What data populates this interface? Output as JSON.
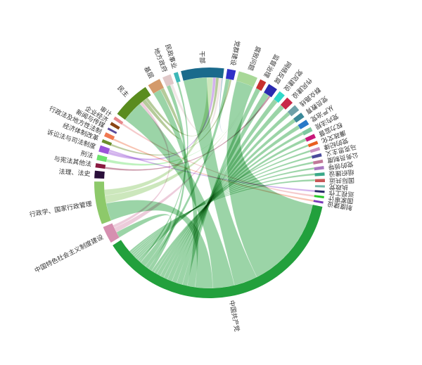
{
  "chart_data": {
    "type": "chord",
    "title": "",
    "groups": [
      {
        "name": "中国共产党",
        "value": 250,
        "color": "#22a03c"
      },
      {
        "name": "中国特色社会主义制度建设",
        "value": 16,
        "color": "#d68fb0"
      },
      {
        "name": "行政学、国家行政管理",
        "value": 40,
        "color": "#8dc96a"
      },
      {
        "name": "法理、法史",
        "value": 7,
        "color": "#2a0f3a"
      },
      {
        "name": "与宪法其他法",
        "value": 4,
        "color": "#8a1a40"
      },
      {
        "name": "刑法",
        "value": 5,
        "color": "#6ee36e"
      },
      {
        "name": "诉讼法与司法制度",
        "value": 6,
        "color": "#9b55d8"
      },
      {
        "name": "经济体制改革",
        "value": 3,
        "color": "#6b8e2a"
      },
      {
        "name": "行政法及地方性法制",
        "value": 4,
        "color": "#f07850"
      },
      {
        "name": "新闻与传媒",
        "value": 2,
        "color": "#5a4a9a"
      },
      {
        "name": "企业经济",
        "value": 3,
        "color": "#8b4513"
      },
      {
        "name": "审计",
        "value": 3,
        "color": "#e8888a"
      },
      {
        "name": "民主",
        "value": 36,
        "color": "#5a8c1e"
      },
      {
        "name": "基层",
        "value": 12,
        "color": "#d49a6a"
      },
      {
        "name": "地方政府",
        "value": 8,
        "color": "#e0c8c8"
      },
      {
        "name": "民政事业",
        "value": 4,
        "color": "#3cb8b8"
      },
      {
        "name": "干部",
        "value": 40,
        "color": "#1a6a8c"
      },
      {
        "name": "党群建设",
        "value": 8,
        "color": "#3030c8"
      },
      {
        "name": "腐败问题",
        "value": 18,
        "color": "#a8d898"
      },
      {
        "name": "监督治理",
        "value": 6,
        "color": "#c83030"
      },
      {
        "name": "网络反腐",
        "value": 9,
        "color": "#2a2ab0"
      },
      {
        "name": "党风建设",
        "value": 6,
        "color": "#30d8c8"
      },
      {
        "name": "作风建设",
        "value": 7,
        "color": "#c82848"
      },
      {
        "name": "群众路线",
        "value": 6,
        "color": "#6ea0a8"
      },
      {
        "name": "党员教育",
        "value": 5,
        "color": "#3a8898"
      },
      {
        "name": "从严治党",
        "value": 5,
        "color": "#2878c8"
      },
      {
        "name": "党内法规",
        "value": 4,
        "color": "#7ec8a0"
      },
      {
        "name": "权力监督",
        "value": 4,
        "color": "#c8187a"
      },
      {
        "name": "廉政文化",
        "value": 3,
        "color": "#e86020"
      },
      {
        "name": "党的纪律",
        "value": 3,
        "color": "#c890c0"
      },
      {
        "name": "马克思主义",
        "value": 3,
        "color": "#4a4a9a"
      },
      {
        "name": "公务员制度",
        "value": 3,
        "color": "#c07898"
      },
      {
        "name": "党的领导",
        "value": 3,
        "color": "#a878c0"
      },
      {
        "name": "组织建设",
        "value": 3,
        "color": "#3aa888"
      },
      {
        "name": "国际共运",
        "value": 3,
        "color": "#c85858"
      },
      {
        "name": "执政党",
        "value": 2,
        "color": "#70b8a8"
      },
      {
        "name": "巡视工作",
        "value": 2,
        "color": "#2a2a6a"
      },
      {
        "name": "国家审计",
        "value": 2,
        "color": "#28c828"
      },
      {
        "name": "制度建设",
        "value": 2,
        "color": "#7a3ab8"
      }
    ],
    "flows": [
      {
        "source": "中国共产党",
        "target": "腐败问题",
        "value": 95,
        "color": "#22a03c"
      },
      {
        "source": "中国共产党",
        "target": "干部",
        "value": 24,
        "color": "#22a03c"
      },
      {
        "source": "中国共产党",
        "target": "民主",
        "value": 22,
        "color": "#22a03c"
      },
      {
        "source": "中国共产党",
        "target": "行政学、国家行政管理",
        "value": 18,
        "color": "#22a03c"
      },
      {
        "source": "中国共产党",
        "target": "基层",
        "value": 8,
        "color": "#22a03c"
      },
      {
        "source": "中国共产党",
        "target": "监督治理",
        "value": 5,
        "color": "#22a03c"
      },
      {
        "source": "中国共产党",
        "target": "网络反腐",
        "value": 6,
        "color": "#22a03c"
      },
      {
        "source": "中国共产党",
        "target": "党风建设",
        "value": 5,
        "color": "#22a03c"
      },
      {
        "source": "中国共产党",
        "target": "作风建设",
        "value": 5,
        "color": "#22a03c"
      },
      {
        "source": "中国共产党",
        "target": "群众路线",
        "value": 4,
        "color": "#22a03c"
      },
      {
        "source": "中国共产党",
        "target": "党员教育",
        "value": 4,
        "color": "#22a03c"
      },
      {
        "source": "中国共产党",
        "target": "从严治党",
        "value": 4,
        "color": "#22a03c"
      },
      {
        "source": "中国共产党",
        "target": "党内法规",
        "value": 3,
        "color": "#22a03c"
      },
      {
        "source": "中国共产党",
        "target": "权力监督",
        "value": 3,
        "color": "#22a03c"
      },
      {
        "source": "中国共产党",
        "target": "地方政府",
        "value": 4,
        "color": "#22a03c"
      },
      {
        "source": "中国共产党",
        "target": "党群建设",
        "value": 4,
        "color": "#22a03c"
      },
      {
        "source": "中国共产党",
        "target": "中国特色社会主义制度建设",
        "value": 6,
        "color": "#22a03c"
      },
      {
        "source": "中国共产党",
        "target": "民政事业",
        "value": 2,
        "color": "#22a03c"
      },
      {
        "source": "中国共产党",
        "target": "廉政文化",
        "value": 2,
        "color": "#22a03c"
      },
      {
        "source": "中国共产党",
        "target": "党的纪律",
        "value": 2,
        "color": "#22a03c"
      },
      {
        "source": "中国共产党",
        "target": "马克思主义",
        "value": 2,
        "color": "#22a03c"
      },
      {
        "source": "中国共产党",
        "target": "公务员制度",
        "value": 2,
        "color": "#22a03c"
      },
      {
        "source": "中国共产党",
        "target": "党的领导",
        "value": 2,
        "color": "#22a03c"
      },
      {
        "source": "中国共产党",
        "target": "组织建设",
        "value": 2,
        "color": "#22a03c"
      },
      {
        "source": "中国共产党",
        "target": "国际共运",
        "value": 2,
        "color": "#22a03c"
      },
      {
        "source": "行政学、国家行政管理",
        "target": "腐败问题",
        "value": 8,
        "color": "#8dc96a"
      },
      {
        "source": "行政学、国家行政管理",
        "target": "干部",
        "value": 6,
        "color": "#8dc96a"
      },
      {
        "source": "中国特色社会主义制度建设",
        "target": "腐败问题",
        "value": 5,
        "color": "#d68fb0"
      },
      {
        "source": "中国特色社会主义制度建设",
        "target": "民主",
        "value": 3,
        "color": "#d68fb0"
      },
      {
        "source": "诉讼法与司法制度",
        "target": "干部",
        "value": 3,
        "color": "#9b55d8"
      },
      {
        "source": "诉讼法与司法制度",
        "target": "巡视工作",
        "value": 2,
        "color": "#9b55d8"
      },
      {
        "source": "刑法",
        "target": "腐败问题",
        "value": 3,
        "color": "#6ee36e"
      },
      {
        "source": "与宪法其他法",
        "target": "网络反腐",
        "value": 2,
        "color": "#8a1a40"
      },
      {
        "source": "民主",
        "target": "基层",
        "value": 4,
        "color": "#5a8c1e"
      },
      {
        "source": "民主",
        "target": "干部",
        "value": 3,
        "color": "#5a8c1e"
      },
      {
        "source": "地方政府",
        "target": "干部",
        "value": 3,
        "color": "#e0c8c8"
      },
      {
        "source": "干部",
        "target": "腐败问题",
        "value": 5,
        "color": "#1a6a8c"
      },
      {
        "source": "审计",
        "target": "国家审计",
        "value": 2,
        "color": "#e8888a"
      },
      {
        "source": "行政法及地方性法制",
        "target": "制度建设",
        "value": 2,
        "color": "#f07850"
      },
      {
        "source": "经济体制改革",
        "target": "党群建设",
        "value": 2,
        "color": "#6b8e2a"
      }
    ]
  }
}
